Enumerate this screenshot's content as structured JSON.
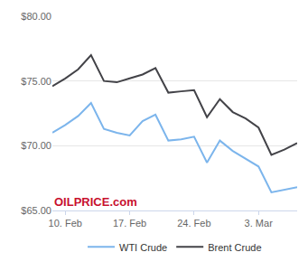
{
  "chart_data": {
    "type": "line",
    "categories": [
      null,
      "10. Feb",
      null,
      null,
      null,
      null,
      "17. Feb",
      null,
      null,
      null,
      null,
      "24. Feb",
      null,
      null,
      null,
      null,
      "3. Mar",
      null,
      null,
      null
    ],
    "series": [
      {
        "name": "WTI Crude",
        "color": "#7cb5ec",
        "values": [
          71.0,
          71.6,
          72.3,
          73.3,
          71.3,
          71.0,
          70.8,
          71.9,
          72.4,
          70.4,
          70.5,
          70.7,
          68.7,
          70.4,
          69.6,
          69.0,
          68.4,
          66.4,
          66.6,
          66.8
        ]
      },
      {
        "name": "Brent Crude",
        "color": "#434348",
        "values": [
          74.6,
          75.2,
          75.9,
          77.0,
          75.0,
          74.9,
          75.2,
          75.5,
          76.0,
          74.1,
          74.2,
          74.3,
          72.2,
          73.6,
          72.6,
          72.1,
          71.4,
          69.3,
          69.7,
          70.2
        ]
      }
    ],
    "ylim": [
      65,
      80
    ],
    "yticks": [
      {
        "value": 65,
        "label": "$65.00"
      },
      {
        "value": 70,
        "label": "$70.00"
      },
      {
        "value": 75,
        "label": "$75.00"
      },
      {
        "value": 80,
        "label": "$80.00"
      }
    ],
    "grid": true,
    "legend": "bottom",
    "annotations": [
      {
        "text": "OILPRICE.com"
      }
    ]
  }
}
